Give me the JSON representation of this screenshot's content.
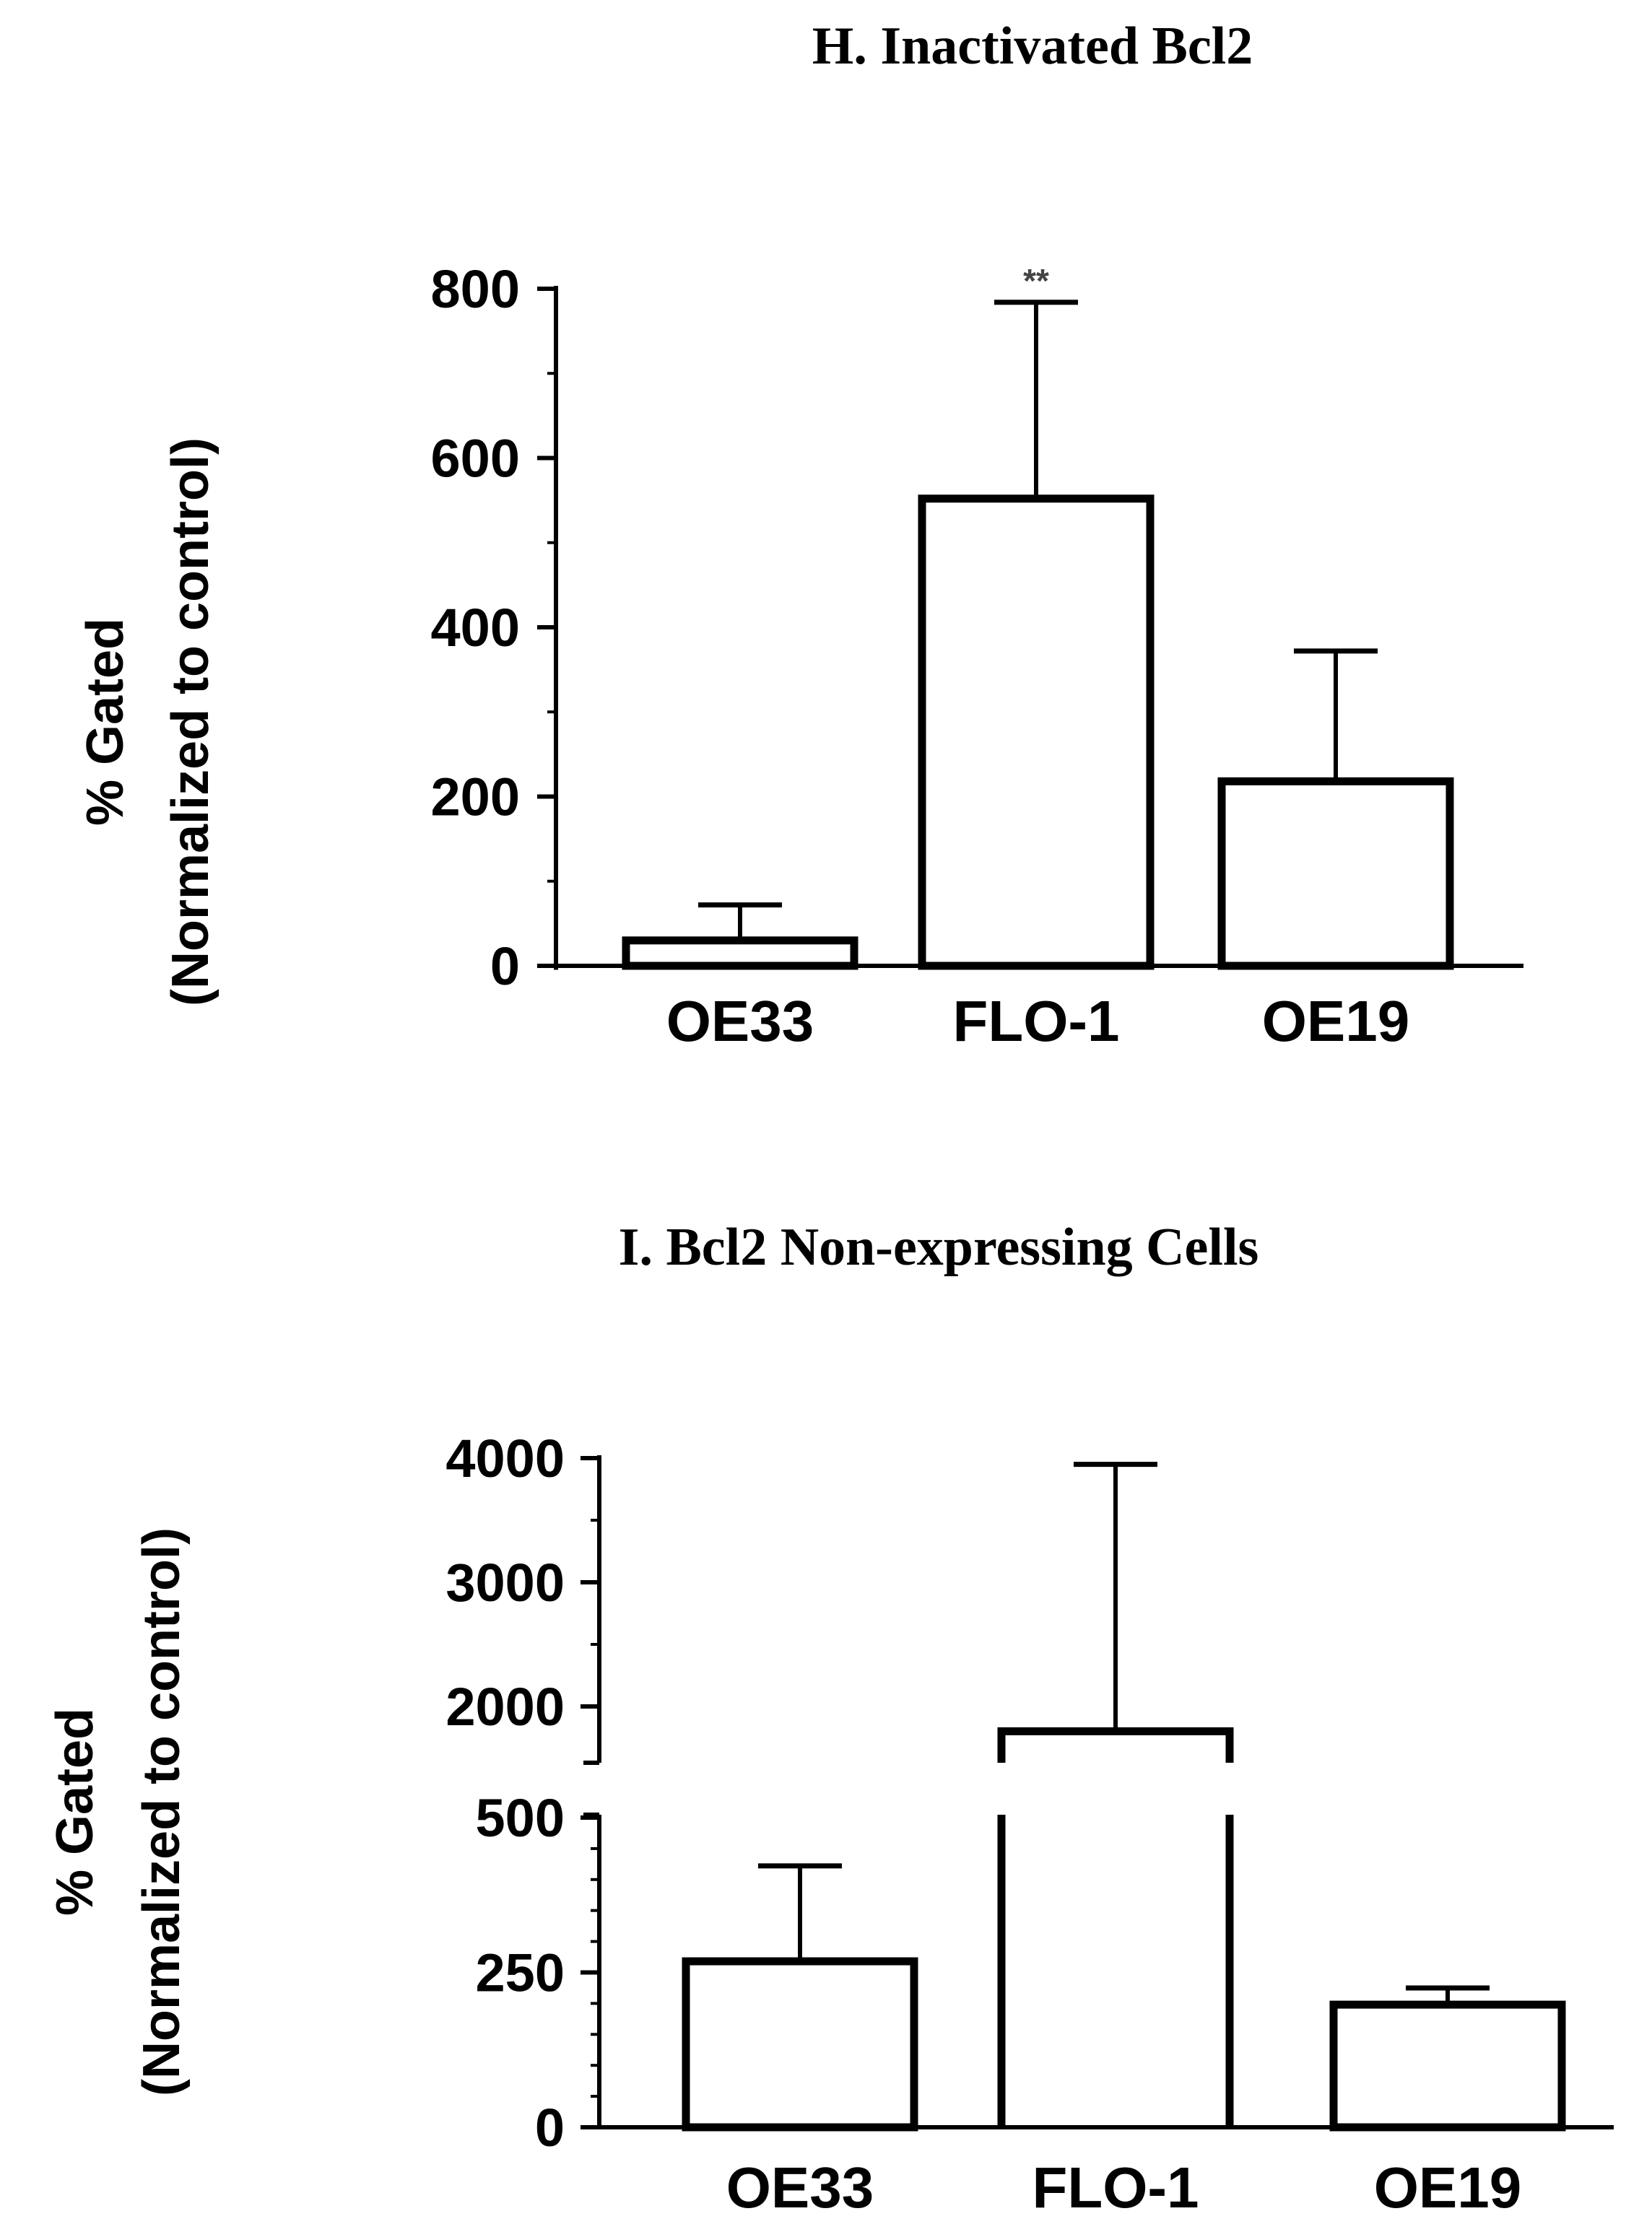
{
  "chart_data": [
    {
      "type": "bar",
      "title": "H. Inactivated Bcl2",
      "ylabel": [
        "% Gated",
        "(Normalized to control)"
      ],
      "xlabel": "",
      "categories": [
        "OE33",
        "FLO-1",
        "OE19"
      ],
      "values": [
        30,
        552,
        218
      ],
      "error_upper": [
        72,
        784,
        372
      ],
      "annotations": [
        {
          "category": "FLO-1",
          "text": "**"
        }
      ],
      "ylim": [
        0,
        800
      ],
      "yticks": [
        0,
        200,
        400,
        600,
        800
      ],
      "ytick_labels": [
        "0",
        "200",
        "400",
        "600",
        "800"
      ],
      "grid": false,
      "legend": "none"
    },
    {
      "type": "bar",
      "title": "I. Bcl2 Non-expressing Cells",
      "ylabel": [
        "% Gated",
        "(Normalized to control)"
      ],
      "xlabel": "",
      "categories": [
        "OE33",
        "FLO-1",
        "OE19"
      ],
      "values": [
        268,
        1800,
        198
      ],
      "error_upper": [
        422,
        3950,
        225
      ],
      "broken_axis": {
        "lower": [
          0,
          500
        ],
        "upper": [
          1500,
          4000
        ]
      },
      "ylim": [
        0,
        4000
      ],
      "yticks": [
        0,
        250,
        500,
        2000,
        3000,
        4000
      ],
      "ytick_labels": [
        "0",
        "250",
        "500",
        "2000",
        "3000",
        "4000"
      ],
      "grid": false,
      "legend": "none"
    }
  ]
}
